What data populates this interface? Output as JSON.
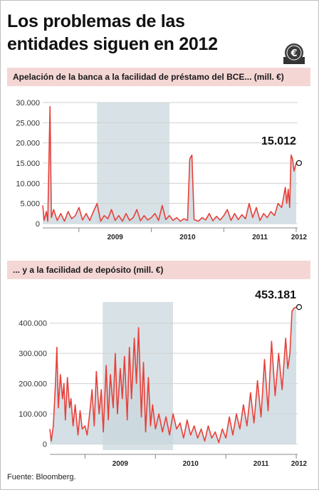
{
  "title": "Los problemas de las entidades siguen en 2012",
  "source": "Fuente: Bloomberg.",
  "icon": "euro-coin-icon",
  "colors": {
    "line": "#e8403a",
    "area": "#c9d8de",
    "area_highlight": "#8fadb8",
    "section_bg": "#f4d7d5",
    "grid": "#d0d0d0"
  },
  "chart_data": [
    {
      "type": "line",
      "title": "Apelación de la banca a la facilidad de préstamo del BCE... (mill. €)",
      "yticks": [
        "0",
        "5.000",
        "10.000",
        "15.000",
        "20.000",
        "25.000",
        "30.000"
      ],
      "ylim": [
        0,
        30000
      ],
      "xticks": [
        "2009",
        "2010",
        "2011",
        "2012"
      ],
      "x_start": 2008.5,
      "x_end": 2012.02,
      "highlight_span": [
        2009.25,
        2010.25
      ],
      "grid": true,
      "last_value_label": "15.012",
      "series": [
        {
          "x": [
            2008.5,
            2008.52,
            2008.55,
            2008.57,
            2008.6,
            2008.62,
            2008.65,
            2008.7,
            2008.75,
            2008.8,
            2008.85,
            2008.9,
            2008.95,
            2009.0,
            2009.05,
            2009.1,
            2009.15,
            2009.2,
            2009.25,
            2009.3,
            2009.35,
            2009.4,
            2009.45,
            2009.5,
            2009.55,
            2009.6,
            2009.65,
            2009.7,
            2009.75,
            2009.8,
            2009.85,
            2009.9,
            2009.95,
            2010.0,
            2010.05,
            2010.1,
            2010.15,
            2010.2,
            2010.25,
            2010.3,
            2010.35,
            2010.4,
            2010.45,
            2010.5,
            2010.53,
            2010.56,
            2010.59,
            2010.62,
            2010.65,
            2010.7,
            2010.75,
            2010.8,
            2010.85,
            2010.9,
            2010.95,
            2011.0,
            2011.05,
            2011.1,
            2011.15,
            2011.2,
            2011.25,
            2011.3,
            2011.35,
            2011.4,
            2011.45,
            2011.5,
            2011.55,
            2011.6,
            2011.65,
            2011.7,
            2011.75,
            2011.8,
            2011.85,
            2011.87,
            2011.89,
            2011.91,
            2011.93,
            2011.95,
            2011.97,
            2012.0
          ],
          "y": [
            4500,
            800,
            3000,
            600,
            29000,
            1500,
            3500,
            800,
            2500,
            600,
            3000,
            1200,
            2000,
            4000,
            900,
            2500,
            800,
            3000,
            5000,
            600,
            2000,
            1200,
            3500,
            800,
            2000,
            600,
            2500,
            800,
            1500,
            3500,
            700,
            2000,
            900,
            1500,
            2500,
            800,
            4500,
            1000,
            2000,
            800,
            1500,
            600,
            1200,
            800,
            16000,
            17000,
            1000,
            800,
            600,
            1500,
            900,
            2500,
            700,
            1800,
            900,
            2000,
            3500,
            800,
            2500,
            1000,
            2200,
            1200,
            5000,
            1500,
            4000,
            800,
            2500,
            1500,
            3000,
            2000,
            5000,
            4000,
            9000,
            5000,
            8500,
            4000,
            17000,
            16000,
            13000,
            15012
          ]
        }
      ]
    },
    {
      "type": "line",
      "title": "... y a la facilidad de depósito (mill. €)",
      "yticks": [
        "0",
        "100.000",
        "200.000",
        "300.000",
        "400.000"
      ],
      "ylim": [
        -20000,
        470000
      ],
      "xticks": [
        "2009",
        "2010",
        "2011",
        "2012"
      ],
      "x_start": 2008.5,
      "x_end": 2012.02,
      "highlight_span": [
        2009.25,
        2010.25
      ],
      "grid": true,
      "last_value_label": "453.181",
      "series": [
        {
          "x": [
            2008.5,
            2008.52,
            2008.55,
            2008.58,
            2008.6,
            2008.62,
            2008.65,
            2008.68,
            2008.7,
            2008.72,
            2008.75,
            2008.78,
            2008.8,
            2008.83,
            2008.86,
            2008.9,
            2008.93,
            2008.96,
            2009.0,
            2009.03,
            2009.06,
            2009.1,
            2009.13,
            2009.16,
            2009.2,
            2009.23,
            2009.26,
            2009.3,
            2009.33,
            2009.36,
            2009.4,
            2009.43,
            2009.46,
            2009.5,
            2009.53,
            2009.56,
            2009.6,
            2009.63,
            2009.66,
            2009.7,
            2009.73,
            2009.76,
            2009.8,
            2009.83,
            2009.86,
            2009.9,
            2009.93,
            2009.96,
            2010.0,
            2010.05,
            2010.1,
            2010.15,
            2010.2,
            2010.25,
            2010.3,
            2010.35,
            2010.4,
            2010.45,
            2010.5,
            2010.55,
            2010.6,
            2010.65,
            2010.7,
            2010.75,
            2010.8,
            2010.85,
            2010.9,
            2010.95,
            2011.0,
            2011.05,
            2011.1,
            2011.15,
            2011.2,
            2011.25,
            2011.3,
            2011.35,
            2011.4,
            2011.45,
            2011.5,
            2011.55,
            2011.6,
            2011.65,
            2011.7,
            2011.75,
            2011.8,
            2011.85,
            2011.88,
            2011.91,
            2011.94,
            2011.97,
            2012.0
          ],
          "y": [
            50000,
            10000,
            60000,
            200000,
            320000,
            120000,
            230000,
            150000,
            200000,
            80000,
            220000,
            120000,
            150000,
            60000,
            130000,
            30000,
            110000,
            50000,
            60000,
            30000,
            90000,
            180000,
            60000,
            240000,
            100000,
            180000,
            40000,
            260000,
            80000,
            230000,
            120000,
            300000,
            100000,
            250000,
            150000,
            290000,
            80000,
            320000,
            150000,
            350000,
            200000,
            385000,
            90000,
            270000,
            40000,
            220000,
            60000,
            130000,
            50000,
            100000,
            40000,
            90000,
            30000,
            100000,
            50000,
            70000,
            20000,
            80000,
            30000,
            60000,
            20000,
            50000,
            10000,
            60000,
            20000,
            40000,
            5000,
            50000,
            20000,
            90000,
            30000,
            100000,
            50000,
            130000,
            60000,
            170000,
            70000,
            210000,
            90000,
            280000,
            110000,
            340000,
            160000,
            300000,
            180000,
            350000,
            250000,
            300000,
            440000,
            450000,
            453181
          ]
        }
      ]
    }
  ]
}
